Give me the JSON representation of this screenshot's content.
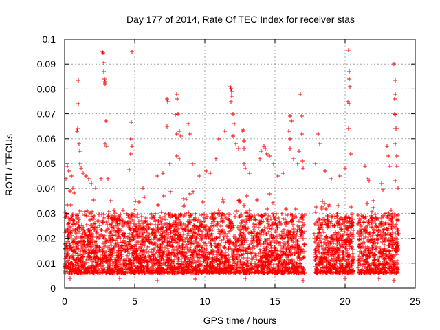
{
  "chart_data": {
    "type": "scatter",
    "title": "Day 177 of 2014, Rate Of TEC Index for receiver stas",
    "xlabel": "GPS time / hours",
    "ylabel": "ROTI / TECUs",
    "xlim": [
      0,
      25
    ],
    "ylim": [
      0,
      0.1
    ],
    "x_ticks": [
      0,
      5,
      10,
      15,
      20,
      25
    ],
    "x_tick_labels": [
      "0",
      "5",
      "10",
      "15",
      "20",
      "25"
    ],
    "y_ticks": [
      0,
      0.01,
      0.02,
      0.03,
      0.04,
      0.05,
      0.06,
      0.07,
      0.08,
      0.09,
      0.1
    ],
    "y_tick_labels": [
      "0",
      "0.01",
      "0.02",
      "0.03",
      "0.04",
      "0.05",
      "0.06",
      "0.07",
      "0.08",
      "0.09",
      "0.1"
    ],
    "grid": true,
    "marker": "+",
    "color": "#ff0000",
    "data_gaps_hours": [
      [
        17.1,
        17.8
      ],
      [
        20.6,
        20.9
      ]
    ],
    "background_band": {
      "x_range": [
        0,
        23.8
      ],
      "y_typical_range": [
        0.006,
        0.03
      ]
    },
    "series": [
      {
        "name": "stas",
        "points": [
          [
            0.1,
            0.044
          ],
          [
            0.2,
            0.049
          ],
          [
            0.3,
            0.047
          ],
          [
            0.5,
            0.045
          ],
          [
            0.6,
            0.04
          ],
          [
            0.7,
            0.038
          ],
          [
            0.9,
            0.063
          ],
          [
            0.95,
            0.064
          ],
          [
            1.0,
            0.0835
          ],
          [
            1.0,
            0.074
          ],
          [
            1.05,
            0.058
          ],
          [
            1.1,
            0.055
          ],
          [
            1.1,
            0.05
          ],
          [
            1.2,
            0.048
          ],
          [
            1.3,
            0.046
          ],
          [
            1.5,
            0.045
          ],
          [
            1.7,
            0.044
          ],
          [
            1.9,
            0.042
          ],
          [
            2.2,
            0.04
          ],
          [
            2.6,
            0.044
          ],
          [
            2.7,
            0.095
          ],
          [
            2.75,
            0.0945
          ],
          [
            2.8,
            0.0905
          ],
          [
            2.8,
            0.087
          ],
          [
            2.85,
            0.084
          ],
          [
            2.9,
            0.083
          ],
          [
            2.9,
            0.082
          ],
          [
            2.95,
            0.067
          ],
          [
            2.9,
            0.058
          ],
          [
            3.0,
            0.057
          ],
          [
            3.1,
            0.044
          ],
          [
            3.3,
            0.035
          ],
          [
            3.6,
            0.03
          ],
          [
            4.6,
            0.0475
          ],
          [
            4.7,
            0.054
          ],
          [
            4.7,
            0.06
          ],
          [
            4.75,
            0.0665
          ],
          [
            4.8,
            0.095
          ],
          [
            4.8,
            0.057
          ],
          [
            5.6,
            0.04
          ],
          [
            6.6,
            0.045
          ],
          [
            7.0,
            0.046
          ],
          [
            7.3,
            0.076
          ],
          [
            7.35,
            0.075
          ],
          [
            7.3,
            0.065
          ],
          [
            7.5,
            0.05
          ],
          [
            7.9,
            0.0695
          ],
          [
            8.0,
            0.078
          ],
          [
            8.05,
            0.076
          ],
          [
            8.1,
            0.07
          ],
          [
            8.0,
            0.062
          ],
          [
            8.2,
            0.063
          ],
          [
            8.3,
            0.061
          ],
          [
            8.0,
            0.053
          ],
          [
            8.2,
            0.052
          ],
          [
            8.8,
            0.066
          ],
          [
            8.9,
            0.062
          ],
          [
            9.1,
            0.05
          ],
          [
            9.6,
            0.045
          ],
          [
            10.1,
            0.047
          ],
          [
            10.4,
            0.046
          ],
          [
            10.8,
            0.052
          ],
          [
            11.0,
            0.06
          ],
          [
            11.4,
            0.063
          ],
          [
            11.8,
            0.081
          ],
          [
            11.85,
            0.08
          ],
          [
            11.9,
            0.079
          ],
          [
            11.9,
            0.077
          ],
          [
            11.85,
            0.075
          ],
          [
            12.0,
            0.07
          ],
          [
            12.1,
            0.066
          ],
          [
            12.0,
            0.061
          ],
          [
            12.2,
            0.058
          ],
          [
            12.4,
            0.056
          ],
          [
            12.7,
            0.063
          ],
          [
            12.75,
            0.0635
          ],
          [
            12.8,
            0.059
          ],
          [
            12.8,
            0.056
          ],
          [
            12.8,
            0.05
          ],
          [
            12.9,
            0.048
          ],
          [
            13.2,
            0.046
          ],
          [
            13.9,
            0.052
          ],
          [
            14.0,
            0.055
          ],
          [
            14.2,
            0.057
          ],
          [
            14.3,
            0.056
          ],
          [
            14.4,
            0.054
          ],
          [
            14.6,
            0.053
          ],
          [
            14.9,
            0.05
          ],
          [
            15.2,
            0.045
          ],
          [
            15.6,
            0.046
          ],
          [
            16.1,
            0.069
          ],
          [
            16.2,
            0.067
          ],
          [
            16.0,
            0.063
          ],
          [
            16.1,
            0.06
          ],
          [
            16.1,
            0.056
          ],
          [
            16.3,
            0.052
          ],
          [
            16.6,
            0.05
          ],
          [
            16.7,
            0.055
          ],
          [
            16.8,
            0.078
          ],
          [
            16.9,
            0.069
          ],
          [
            16.9,
            0.062
          ],
          [
            16.95,
            0.051
          ],
          [
            17.0,
            0.048
          ],
          [
            17.9,
            0.05
          ],
          [
            18.1,
            0.062
          ],
          [
            18.2,
            0.058
          ],
          [
            18.6,
            0.047
          ],
          [
            19.0,
            0.044
          ],
          [
            19.6,
            0.045
          ],
          [
            20.0,
            0.048
          ],
          [
            20.25,
            0.0955
          ],
          [
            20.3,
            0.087
          ],
          [
            20.3,
            0.084
          ],
          [
            20.35,
            0.081
          ],
          [
            20.2,
            0.075
          ],
          [
            20.3,
            0.074
          ],
          [
            20.25,
            0.064
          ],
          [
            20.4,
            0.054
          ],
          [
            21.4,
            0.049
          ],
          [
            21.6,
            0.044
          ],
          [
            21.7,
            0.043
          ],
          [
            22.6,
            0.042
          ],
          [
            23.0,
            0.057
          ],
          [
            23.1,
            0.053
          ],
          [
            23.2,
            0.049
          ],
          [
            23.5,
            0.09
          ],
          [
            23.6,
            0.0835
          ],
          [
            23.6,
            0.078
          ],
          [
            23.55,
            0.076
          ],
          [
            23.55,
            0.07
          ],
          [
            23.6,
            0.0695
          ],
          [
            23.6,
            0.064
          ],
          [
            23.7,
            0.064
          ],
          [
            23.6,
            0.058
          ],
          [
            23.7,
            0.053
          ],
          [
            23.7,
            0.049
          ],
          [
            23.6,
            0.043
          ],
          [
            23.75,
            0.04
          ],
          [
            0.4,
            0.004
          ],
          [
            3.9,
            0.004
          ],
          [
            6.6,
            0.003
          ],
          [
            9.3,
            0.0035
          ],
          [
            12.9,
            0.004
          ],
          [
            17.0,
            0.003
          ],
          [
            20.0,
            0.004
          ],
          [
            22.4,
            0.004
          ],
          [
            23.5,
            0.003
          ]
        ]
      }
    ]
  }
}
